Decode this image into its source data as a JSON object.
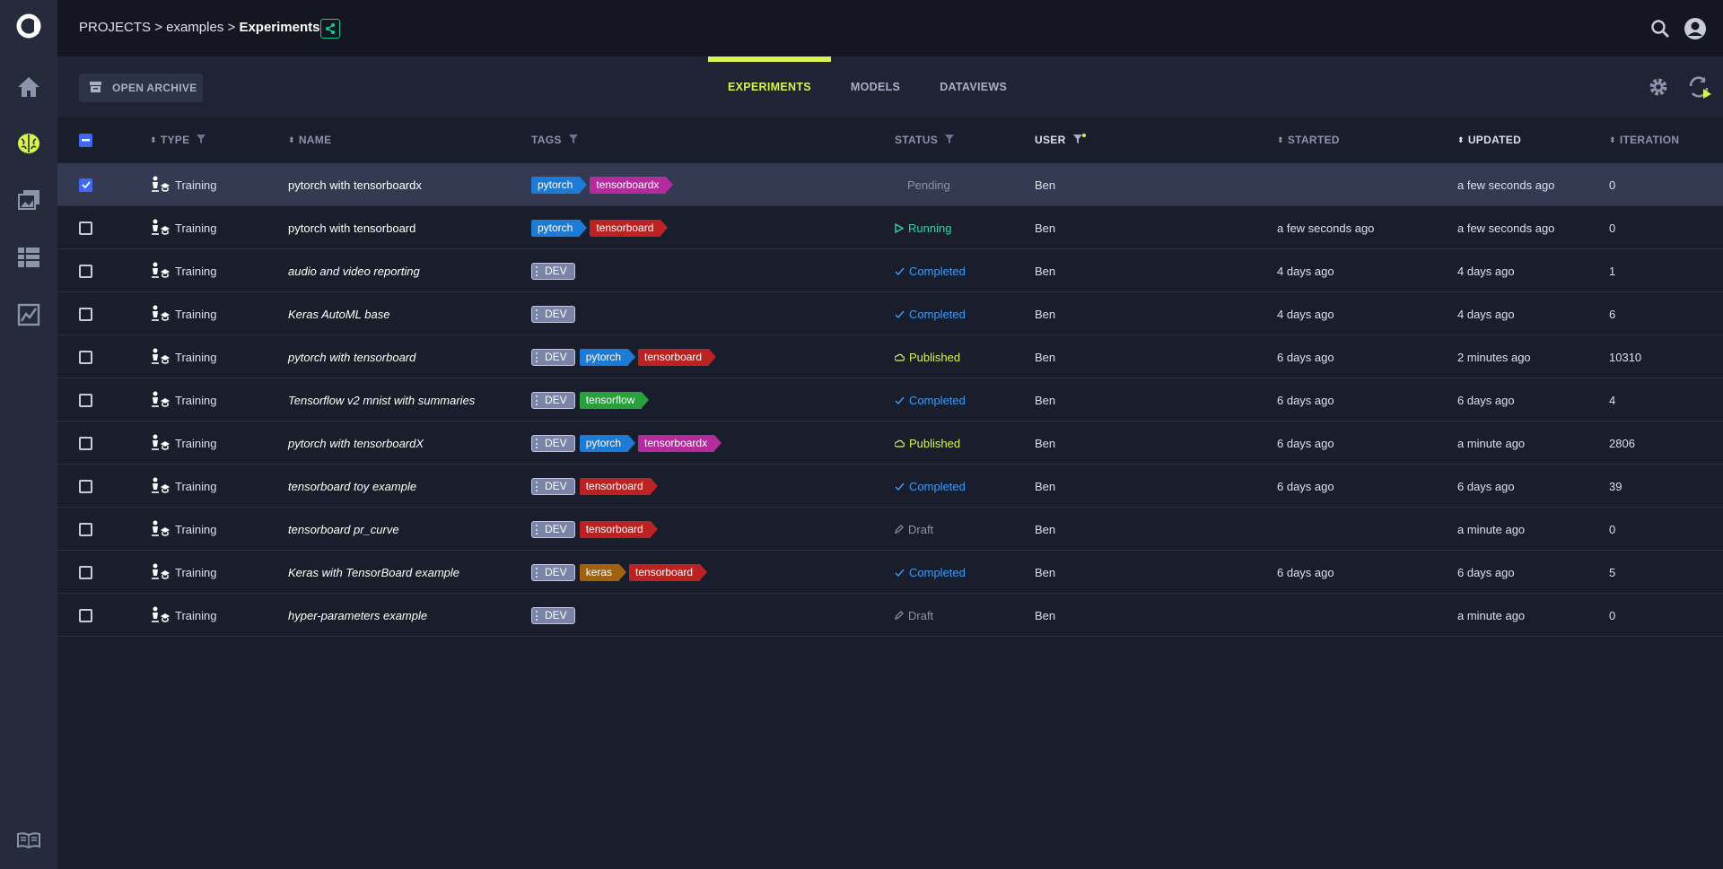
{
  "breadcrumb": {
    "projects": "PROJECTS",
    "sep1": ">",
    "project": "examples",
    "sep2": ">",
    "current": "Experiments"
  },
  "header": {
    "archive_label": "OPEN ARCHIVE",
    "tabs": [
      {
        "label": "EXPERIMENTS",
        "active": true
      },
      {
        "label": "MODELS",
        "active": false
      },
      {
        "label": "DATAVIEWS",
        "active": false
      }
    ]
  },
  "columns": {
    "type": "TYPE",
    "name": "NAME",
    "tags": "TAGS",
    "status": "STATUS",
    "user": "USER",
    "started": "STARTED",
    "updated": "UPDATED",
    "iteration": "ITERATION"
  },
  "rows": [
    {
      "selected": true,
      "type": "Training",
      "name": "pytorch with tensorboardx",
      "italic": false,
      "tags": [
        {
          "label": "pytorch",
          "color": "#1d7bd6"
        },
        {
          "label": "tensorboardx",
          "color": "#b32b9d"
        }
      ],
      "status": "Pending",
      "status_kind": "pending",
      "user": "Ben",
      "started": "",
      "updated": "a few seconds ago",
      "iteration": "0"
    },
    {
      "selected": false,
      "type": "Training",
      "name": "pytorch with tensorboard",
      "italic": false,
      "tags": [
        {
          "label": "pytorch",
          "color": "#1d7bd6"
        },
        {
          "label": "tensorboard",
          "color": "#bb2222"
        }
      ],
      "status": "Running",
      "status_kind": "running",
      "user": "Ben",
      "started": "a few seconds ago",
      "updated": "a few seconds ago",
      "iteration": "0"
    },
    {
      "selected": false,
      "type": "Training",
      "name": "audio and video reporting",
      "italic": true,
      "tags": [
        {
          "label": "DEV",
          "color": "dev"
        }
      ],
      "status": "Completed",
      "status_kind": "completed",
      "user": "Ben",
      "started": "4 days ago",
      "updated": "4 days ago",
      "iteration": "1"
    },
    {
      "selected": false,
      "type": "Training",
      "name": "Keras AutoML base",
      "italic": true,
      "tags": [
        {
          "label": "DEV",
          "color": "dev"
        }
      ],
      "status": "Completed",
      "status_kind": "completed",
      "user": "Ben",
      "started": "4 days ago",
      "updated": "4 days ago",
      "iteration": "6"
    },
    {
      "selected": false,
      "type": "Training",
      "name": "pytorch with tensorboard",
      "italic": true,
      "tags": [
        {
          "label": "DEV",
          "color": "dev"
        },
        {
          "label": "pytorch",
          "color": "#1d7bd6"
        },
        {
          "label": "tensorboard",
          "color": "#bb2222"
        }
      ],
      "status": "Published",
      "status_kind": "published",
      "user": "Ben",
      "started": "6 days ago",
      "updated": "2 minutes ago",
      "iteration": "10310"
    },
    {
      "selected": false,
      "type": "Training",
      "name": "Tensorflow v2 mnist with summaries",
      "italic": true,
      "tags": [
        {
          "label": "DEV",
          "color": "dev"
        },
        {
          "label": "tensorflow",
          "color": "#28a03c"
        }
      ],
      "status": "Completed",
      "status_kind": "completed",
      "user": "Ben",
      "started": "6 days ago",
      "updated": "6 days ago",
      "iteration": "4"
    },
    {
      "selected": false,
      "type": "Training",
      "name": "pytorch with tensorboardX",
      "italic": true,
      "tags": [
        {
          "label": "DEV",
          "color": "dev"
        },
        {
          "label": "pytorch",
          "color": "#1d7bd6"
        },
        {
          "label": "tensorboardx",
          "color": "#b32b9d"
        }
      ],
      "status": "Published",
      "status_kind": "published",
      "user": "Ben",
      "started": "6 days ago",
      "updated": "a minute ago",
      "iteration": "2806"
    },
    {
      "selected": false,
      "type": "Training",
      "name": "tensorboard toy example",
      "italic": true,
      "tags": [
        {
          "label": "DEV",
          "color": "dev"
        },
        {
          "label": "tensorboard",
          "color": "#bb2222"
        }
      ],
      "status": "Completed",
      "status_kind": "completed",
      "user": "Ben",
      "started": "6 days ago",
      "updated": "6 days ago",
      "iteration": "39"
    },
    {
      "selected": false,
      "type": "Training",
      "name": "tensorboard pr_curve",
      "italic": true,
      "tags": [
        {
          "label": "DEV",
          "color": "dev"
        },
        {
          "label": "tensorboard",
          "color": "#bb2222"
        }
      ],
      "status": "Draft",
      "status_kind": "draft",
      "user": "Ben",
      "started": "",
      "updated": "a minute ago",
      "iteration": "0"
    },
    {
      "selected": false,
      "type": "Training",
      "name": "Keras with TensorBoard example",
      "italic": true,
      "tags": [
        {
          "label": "DEV",
          "color": "dev"
        },
        {
          "label": "keras",
          "color": "#a0620e"
        },
        {
          "label": "tensorboard",
          "color": "#bb2222"
        }
      ],
      "status": "Completed",
      "status_kind": "completed",
      "user": "Ben",
      "started": "6 days ago",
      "updated": "6 days ago",
      "iteration": "5"
    },
    {
      "selected": false,
      "type": "Training",
      "name": "hyper-parameters example",
      "italic": true,
      "tags": [
        {
          "label": "DEV",
          "color": "dev"
        }
      ],
      "status": "Draft",
      "status_kind": "draft",
      "user": "Ben",
      "started": "",
      "updated": "a minute ago",
      "iteration": "0"
    }
  ],
  "colors": {
    "accent": "#d8f34a",
    "completed": "#3a9bff",
    "running": "#2ed6a0",
    "published": "#d8f34a",
    "pending": "#8c93ab",
    "draft": "#8c93ab",
    "checkbox": "#4068f2"
  },
  "icons": {
    "logo": "allegro-logo-icon",
    "home": "home-icon",
    "experiments": "brain-icon",
    "models": "images-icon",
    "datasets": "table-icon",
    "reports": "chart-icon",
    "docs": "book-icon",
    "search": "search-icon",
    "user": "user-icon",
    "settings": "gear-icon",
    "refresh": "refresh-icon"
  }
}
